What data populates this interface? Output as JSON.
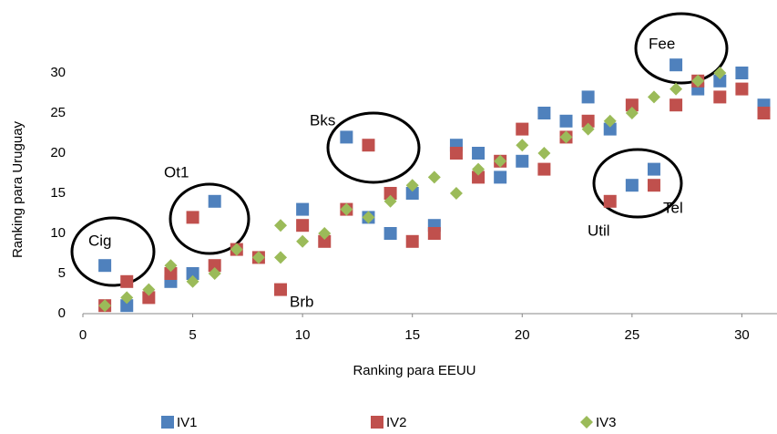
{
  "chart_data": {
    "type": "scatter",
    "x_label": "Ranking para EEUU",
    "y_label": "Ranking para Uruguay",
    "xlim": [
      0,
      31.6
    ],
    "xticks": [
      0,
      5,
      10,
      15,
      20,
      25,
      30
    ],
    "ylim": [
      0,
      30
    ],
    "yticks": [
      0,
      5,
      10,
      15,
      20,
      25,
      30
    ],
    "legend": "bottom",
    "series": [
      {
        "name": "IV1",
        "color": "#4f81bd",
        "marker": "square",
        "x": [
          1,
          2,
          4,
          5,
          6,
          10,
          12,
          13,
          14,
          15,
          16,
          17,
          18,
          19,
          20,
          21,
          22,
          23,
          24,
          25,
          26,
          27,
          28,
          29,
          30,
          31
        ],
        "values": [
          6,
          1,
          4,
          5,
          14,
          13,
          22,
          12,
          10,
          15,
          11,
          21,
          20,
          17,
          19,
          25,
          24,
          27,
          23,
          16,
          18,
          31,
          28,
          29,
          30,
          26
        ]
      },
      {
        "name": "IV2",
        "color": "#c0504d",
        "marker": "square",
        "x": [
          1,
          2,
          3,
          4,
          5,
          6,
          7,
          8,
          9,
          10,
          11,
          12,
          13,
          14,
          15,
          16,
          17,
          18,
          19,
          20,
          21,
          22,
          23,
          24,
          25,
          26,
          27,
          28,
          29,
          30,
          31
        ],
        "values": [
          1,
          4,
          2,
          5,
          12,
          6,
          8,
          7,
          3,
          11,
          9,
          13,
          21,
          15,
          9,
          10,
          20,
          17,
          19,
          23,
          18,
          22,
          24,
          14,
          26,
          16,
          26,
          29,
          27,
          28,
          25
        ]
      },
      {
        "name": "IV3",
        "color": "#9bbb59",
        "marker": "diamond",
        "x": [
          1,
          2,
          3,
          4,
          5,
          6,
          7,
          8,
          9,
          9,
          10,
          11,
          12,
          13,
          14,
          15,
          16,
          17,
          18,
          19,
          20,
          21,
          22,
          23,
          24,
          25,
          26,
          27,
          28,
          29
        ],
        "values": [
          1,
          2,
          3,
          6,
          4,
          5,
          8,
          7,
          11,
          7,
          9,
          10,
          13,
          12,
          14,
          16,
          17,
          15,
          18,
          19,
          21,
          20,
          22,
          23,
          24,
          25,
          27,
          28,
          29,
          30
        ]
      }
    ],
    "annotations": [
      "Cig",
      "Ot1",
      "Bks",
      "Brb",
      "Fee",
      "Util",
      "Tel"
    ]
  }
}
